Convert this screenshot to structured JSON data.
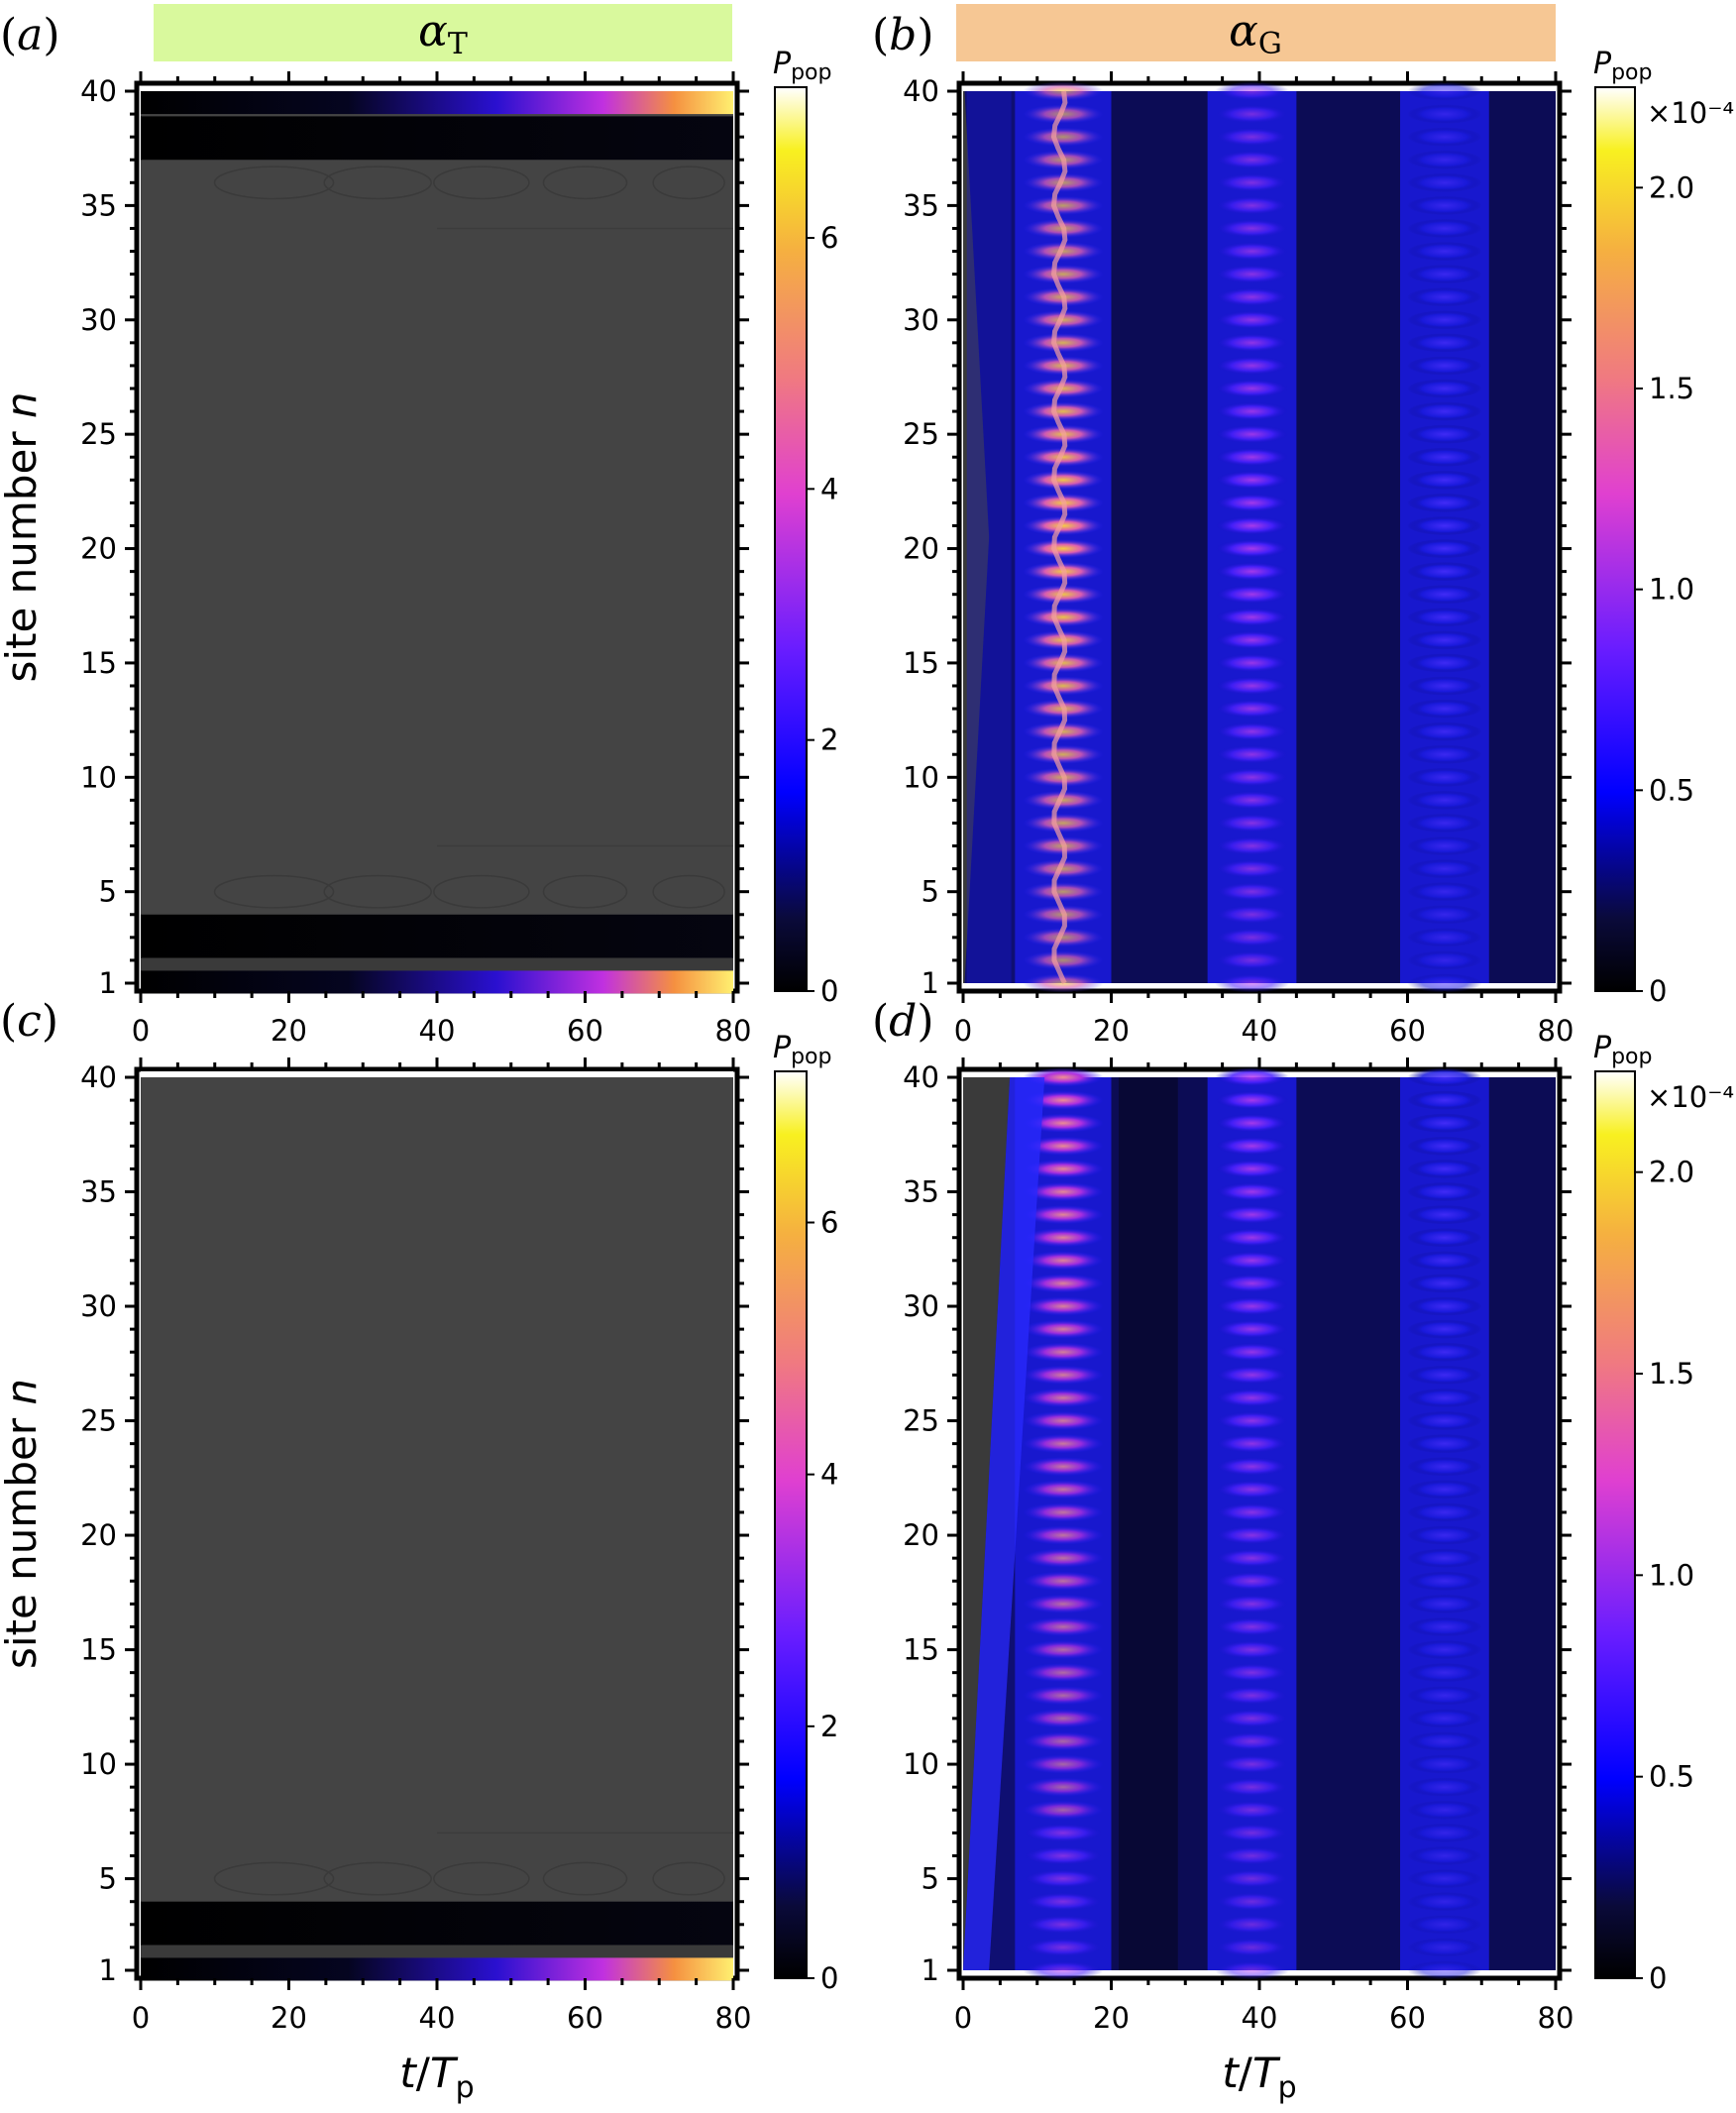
{
  "headers": {
    "left": {
      "symbol": "α",
      "subscript": "T",
      "color": "#d9f99d"
    },
    "right": {
      "symbol": "α",
      "subscript": "G",
      "color": "#f6c794"
    }
  },
  "colorbar": {
    "symbol": "P",
    "subscript": "pop",
    "colormap": "plasma-like (black-blue-magenta-orange-yellow-white)"
  },
  "chart_data": [
    {
      "type": "heatmap",
      "panel": "(a)",
      "header": "αT",
      "xlabel": "t/Tp",
      "ylabel": "site number n",
      "xlim": [
        0,
        80
      ],
      "ylim": [
        1,
        40
      ],
      "xticks": [
        "0",
        "20",
        "40",
        "60",
        "80"
      ],
      "yticks": [
        "1",
        "5",
        "10",
        "15",
        "20",
        "25",
        "30",
        "35",
        "40"
      ],
      "colorbar_ticks": [
        "0",
        "2",
        "4",
        "6"
      ],
      "colorbar_range": [
        0,
        7.2
      ],
      "colorbar_scale_label": "",
      "pattern": "edge-localized: population grows at n=1 and n=40 over time, rest near zero"
    },
    {
      "type": "heatmap",
      "panel": "(b)",
      "header": "αG",
      "xlabel": "t/Tp",
      "ylabel": "site number n",
      "xlim": [
        0,
        80
      ],
      "ylim": [
        1,
        40
      ],
      "xticks": [
        "0",
        "20",
        "40",
        "60",
        "80"
      ],
      "yticks": [
        "1",
        "5",
        "10",
        "15",
        "20",
        "25",
        "30",
        "35",
        "40"
      ],
      "colorbar_ticks": [
        "0",
        "0.5",
        "1.0",
        "1.5",
        "2.0"
      ],
      "colorbar_range": [
        0,
        2.25
      ],
      "colorbar_scale_label": "×10⁻⁴",
      "pattern": "bulk-delocalized bands at t≈7–20, 33–45, 59–71"
    },
    {
      "type": "heatmap",
      "panel": "(c)",
      "header": "",
      "xlabel": "t/Tp",
      "ylabel": "site number n",
      "xlim": [
        0,
        80
      ],
      "ylim": [
        1,
        40
      ],
      "xticks": [
        "0",
        "20",
        "40",
        "60",
        "80"
      ],
      "yticks": [
        "1",
        "5",
        "10",
        "15",
        "20",
        "25",
        "30",
        "35",
        "40"
      ],
      "colorbar_ticks": [
        "0",
        "2",
        "4",
        "6"
      ],
      "colorbar_range": [
        0,
        7.2
      ],
      "colorbar_scale_label": "",
      "pattern": "edge-localized at n=1 only"
    },
    {
      "type": "heatmap",
      "panel": "(d)",
      "header": "",
      "xlabel": "t/Tp",
      "ylabel": "site number n",
      "xlim": [
        0,
        80
      ],
      "ylim": [
        1,
        40
      ],
      "xticks": [
        "0",
        "20",
        "40",
        "60",
        "80"
      ],
      "yticks": [
        "1",
        "5",
        "10",
        "15",
        "20",
        "25",
        "30",
        "35",
        "40"
      ],
      "colorbar_ticks": [
        "0",
        "0.5",
        "1.0",
        "1.5",
        "2.0"
      ],
      "colorbar_range": [
        0,
        2.25
      ],
      "colorbar_scale_label": "×10⁻⁴",
      "pattern": "bulk bands with tilted leading front from n=1 at t≈0 to n=40 at t≈7"
    }
  ]
}
